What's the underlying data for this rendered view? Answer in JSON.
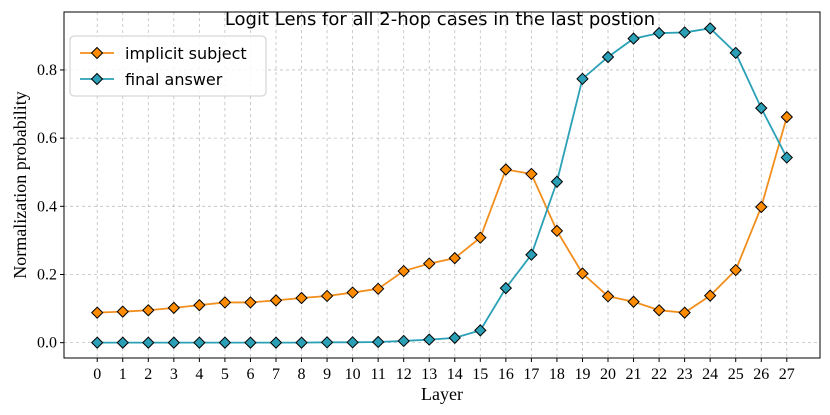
{
  "chart_data": {
    "type": "line",
    "title": "Logit Lens for all 2-hop cases in the last postion",
    "xlabel": "Layer",
    "ylabel": "Normalization probability",
    "x": [
      0,
      1,
      2,
      3,
      4,
      5,
      6,
      7,
      8,
      9,
      10,
      11,
      12,
      13,
      14,
      15,
      16,
      17,
      18,
      19,
      20,
      21,
      22,
      23,
      24,
      25,
      26,
      27
    ],
    "xlim": [
      -1.3,
      28.3
    ],
    "ylim": [
      -0.045,
      0.97
    ],
    "yticks": [
      0.0,
      0.2,
      0.4,
      0.6,
      0.8
    ],
    "ytick_labels": [
      "0.0",
      "0.2",
      "0.4",
      "0.6",
      "0.8"
    ],
    "grid": true,
    "legend_position": "top-left",
    "marker": "diamond",
    "series": [
      {
        "name": "implicit subject",
        "color": "#f28e1c",
        "marker_color": "#ff8c00",
        "values": [
          0.088,
          0.091,
          0.095,
          0.102,
          0.11,
          0.118,
          0.118,
          0.124,
          0.131,
          0.137,
          0.147,
          0.158,
          0.21,
          0.232,
          0.248,
          0.308,
          0.508,
          0.495,
          0.328,
          0.203,
          0.136,
          0.12,
          0.095,
          0.088,
          0.138,
          0.213,
          0.398,
          0.662
        ]
      },
      {
        "name": "final answer",
        "color": "#2aa0b6",
        "marker_color": "#2a9fb5",
        "values": [
          0.0,
          0.0,
          0.0,
          0.0,
          0.0,
          0.0,
          0.0,
          0.0,
          0.0,
          0.001,
          0.001,
          0.002,
          0.005,
          0.009,
          0.014,
          0.036,
          0.16,
          0.258,
          0.472,
          0.774,
          0.838,
          0.892,
          0.908,
          0.91,
          0.922,
          0.85,
          0.688,
          0.543
        ]
      }
    ]
  }
}
